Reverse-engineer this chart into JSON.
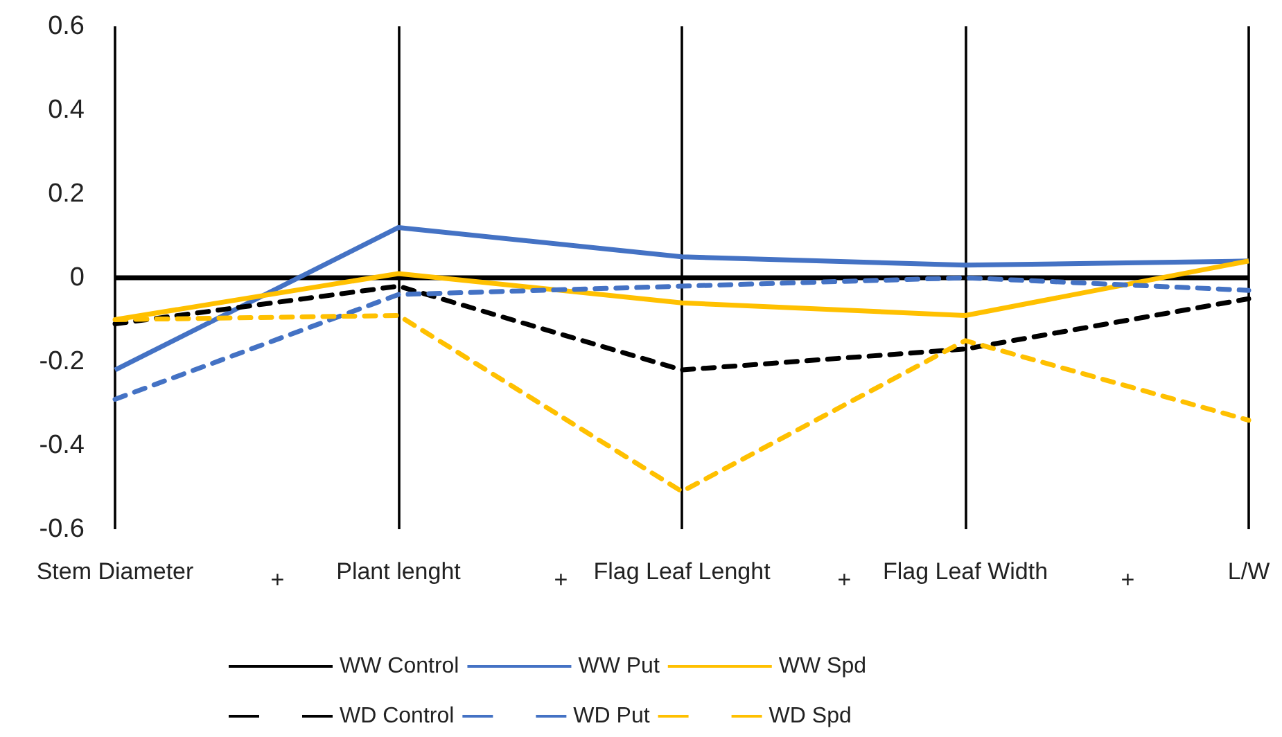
{
  "chart_data": {
    "type": "line",
    "categories": [
      "Stem Diameter",
      "Plant lenght",
      "Flag Leaf Lenght",
      "Flag Leaf Width",
      "L/W"
    ],
    "series": [
      {
        "name": "WW Control",
        "color": "#000000",
        "line_style": "solid",
        "values": [
          0,
          0,
          0,
          0,
          0
        ]
      },
      {
        "name": "WW Put",
        "color": "#4472c4",
        "line_style": "solid",
        "values": [
          -0.22,
          0.12,
          0.05,
          0.03,
          0.04
        ]
      },
      {
        "name": "WW Spd",
        "color": "#ffc000",
        "line_style": "solid",
        "values": [
          -0.1,
          0.01,
          -0.06,
          -0.09,
          0.04
        ]
      },
      {
        "name": "WD Control",
        "color": "#000000",
        "line_style": "dashed",
        "values": [
          -0.11,
          -0.02,
          -0.22,
          -0.17,
          -0.05
        ]
      },
      {
        "name": "WD Put",
        "color": "#4472c4",
        "line_style": "dashed",
        "values": [
          -0.29,
          -0.04,
          -0.02,
          0,
          -0.03
        ]
      },
      {
        "name": "WD Spd",
        "color": "#ffc000",
        "line_style": "dashed",
        "values": [
          -0.1,
          -0.09,
          -0.51,
          -0.15,
          -0.34
        ]
      }
    ],
    "ylim": [
      -0.6,
      0.6
    ],
    "yticks": [
      -0.6,
      -0.4,
      -0.2,
      0,
      0.2,
      0.4,
      0.6
    ],
    "grid": "x",
    "legend": "bottom",
    "marker": "none",
    "annotations": [
      "+",
      "+",
      "+",
      "+"
    ]
  }
}
